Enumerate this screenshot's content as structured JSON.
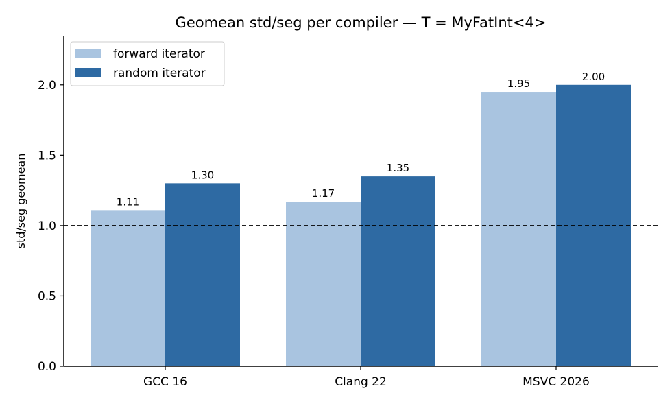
{
  "chart_data": {
    "type": "bar",
    "title": "Geomean std/seg per compiler — T = MyFatInt<4>",
    "xlabel": "",
    "ylabel": "std/seg geomean",
    "categories": [
      "GCC 16",
      "Clang 22",
      "MSVC 2026"
    ],
    "series": [
      {
        "name": "forward iterator",
        "values": [
          1.11,
          1.17,
          1.95
        ],
        "labels": [
          "1.11",
          "1.17",
          "1.95"
        ],
        "color": "#a9c4e0"
      },
      {
        "name": "random iterator",
        "values": [
          1.3,
          1.35,
          2.0
        ],
        "labels": [
          "1.30",
          "1.35",
          "2.00"
        ],
        "color": "#2e6aa3"
      }
    ],
    "ylim": [
      0,
      2.35
    ],
    "yticks": [
      "0.0",
      "0.5",
      "1.0",
      "1.5",
      "2.0"
    ],
    "reference_line": 1.0,
    "legend_position": "top-left",
    "grid": false
  }
}
